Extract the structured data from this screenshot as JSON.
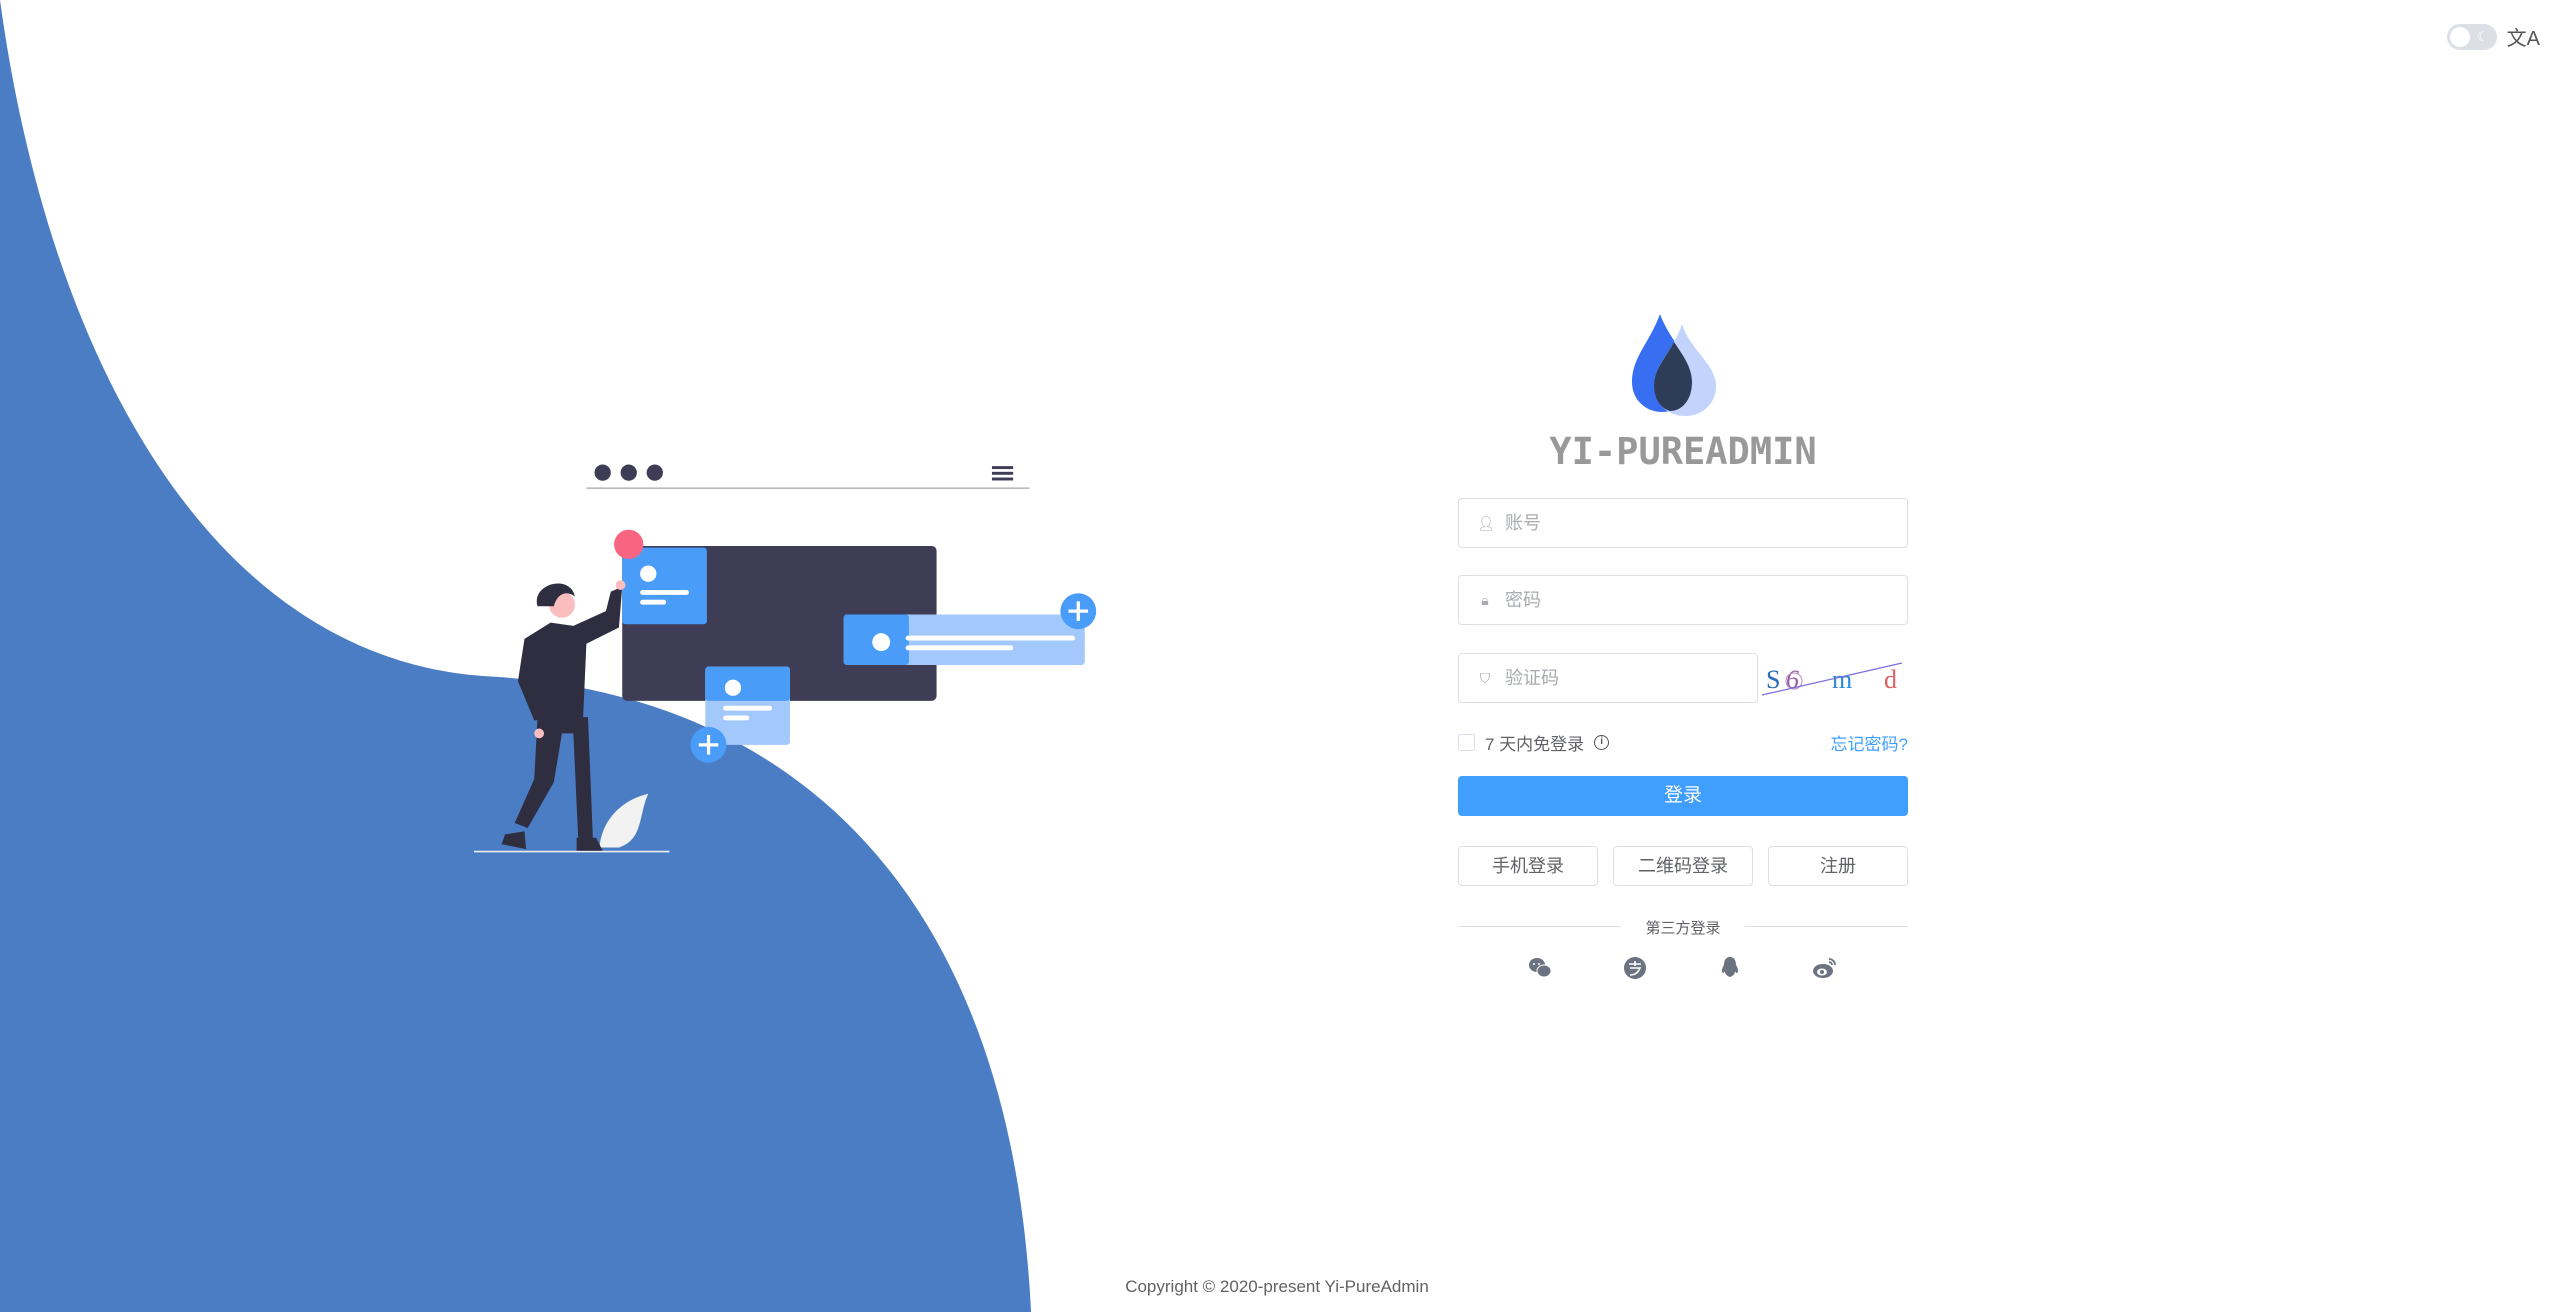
{
  "header": {
    "theme_toggle": "dark-mode-toggle",
    "theme_icon": "moon-icon",
    "language_icon": "translate-icon"
  },
  "brand": {
    "title": "YI-PUREADMIN",
    "logo_colors": [
      "#386ef2",
      "#2f3c57",
      "#c3d3fb"
    ]
  },
  "form": {
    "username_placeholder": "账号",
    "username_value": "",
    "password_placeholder": "密码",
    "password_value": "",
    "captcha_placeholder": "验证码",
    "captcha_value": "",
    "captcha_image_text": [
      "S",
      "6",
      "m",
      "d"
    ],
    "remember_label": "7 天内免登录",
    "forgot_label": "忘记密码?",
    "login_label": "登录",
    "phone_login_label": "手机登录",
    "qr_login_label": "二维码登录",
    "register_label": "注册",
    "third_party_label": "第三方登录",
    "social": [
      "wechat-icon",
      "alipay-icon",
      "qq-icon",
      "weibo-icon"
    ]
  },
  "footer": {
    "copyright": "Copyright © 2020-present Yi-PureAdmin"
  },
  "colors": {
    "primary": "#409eff",
    "wave": "#4a7dc4",
    "illustration_dark": "#3f3d56",
    "illustration_blue": "#4a9cf9",
    "accent_pink": "#f86581"
  }
}
